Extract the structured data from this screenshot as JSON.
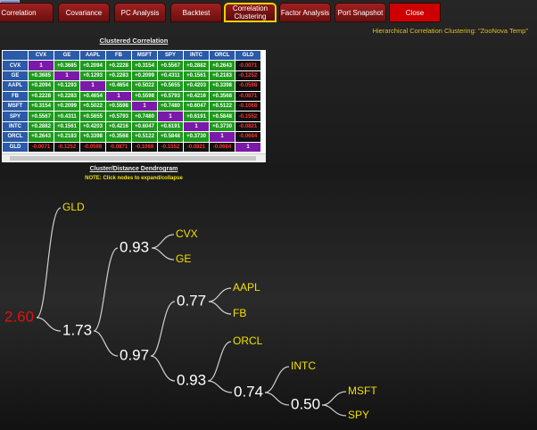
{
  "tabs": [
    "Correlation",
    "Covariance",
    "PC Analysis",
    "Backtest",
    "Correlation Clustering",
    "Factor Analysis",
    "Port Snapshot",
    "Close"
  ],
  "header": {
    "title": "Hierarchical Correlation Clustering: \"ZooNova Temp\""
  },
  "table": {
    "title": "Clustered Correlation",
    "columns": [
      "CVX",
      "GE",
      "AAPL",
      "FB",
      "MSFT",
      "SPY",
      "INTC",
      "ORCL",
      "GLD"
    ],
    "rows": [
      {
        "label": "CVX",
        "cells": [
          "1",
          "+0.3685",
          "+0.2094",
          "+0.2228",
          "+0.3154",
          "+0.5567",
          "+0.2882",
          "+0.2643",
          "-0.0071"
        ]
      },
      {
        "label": "GE",
        "cells": [
          "+0.3685",
          "1",
          "+0.1293",
          "+0.2283",
          "+0.2099",
          "+0.4311",
          "+0.1561",
          "+0.2183",
          "-0.1252"
        ]
      },
      {
        "label": "AAPL",
        "cells": [
          "+0.2094",
          "+0.1293",
          "1",
          "+0.4654",
          "+0.5022",
          "+0.5655",
          "+0.4203",
          "+0.3398",
          "-0.0598"
        ]
      },
      {
        "label": "FB",
        "cells": [
          "+0.2228",
          "+0.2283",
          "+0.4654",
          "1",
          "+0.5598",
          "+0.5793",
          "+0.4216",
          "+0.3568",
          "-0.0871"
        ]
      },
      {
        "label": "MSFT",
        "cells": [
          "+0.3154",
          "+0.2099",
          "+0.5022",
          "+0.5598",
          "1",
          "+0.7480",
          "+0.6047",
          "+0.5122",
          "-0.1068"
        ]
      },
      {
        "label": "SPY",
        "cells": [
          "+0.5567",
          "+0.4311",
          "+0.5655",
          "+0.5793",
          "+0.7480",
          "1",
          "+0.6191",
          "+0.5848",
          "-0.1552"
        ]
      },
      {
        "label": "INTC",
        "cells": [
          "+0.2882",
          "+0.1561",
          "+0.4203",
          "+0.4216",
          "+0.6047",
          "+0.6191",
          "1",
          "+0.3730",
          "-0.0821"
        ]
      },
      {
        "label": "ORCL",
        "cells": [
          "+0.2643",
          "+0.2183",
          "+0.3398",
          "+0.3568",
          "+0.5122",
          "+0.5848",
          "+0.3730",
          "1",
          "-0.0684"
        ]
      },
      {
        "label": "GLD",
        "cells": [
          "-0.0071",
          "-0.1252",
          "-0.0598",
          "-0.0871",
          "-0.1068",
          "-0.1552",
          "-0.0821",
          "-0.0684",
          "1"
        ]
      }
    ]
  },
  "dendrogram": {
    "title": "Cluster/Distance Dendrogram",
    "note": "NOTE: Click nodes to expand/collapse",
    "tree": {
      "label": "2.60",
      "children": [
        {
          "label": "GLD"
        },
        {
          "label": "1.73",
          "children": [
            {
              "label": "0.93",
              "children": [
                {
                  "label": "CVX"
                },
                {
                  "label": "GE"
                }
              ]
            },
            {
              "label": "0.97",
              "children": [
                {
                  "label": "0.77",
                  "children": [
                    {
                      "label": "AAPL"
                    },
                    {
                      "label": "FB"
                    }
                  ]
                },
                {
                  "label": "0.93",
                  "children": [
                    {
                      "label": "ORCL"
                    },
                    {
                      "label": "0.74",
                      "children": [
                        {
                          "label": "INTC"
                        },
                        {
                          "label": "0.50",
                          "children": [
                            {
                              "label": "MSFT"
                            },
                            {
                              "label": "SPY"
                            }
                          ]
                        }
                      ]
                    }
                  ]
                }
              ]
            }
          ]
        }
      ]
    }
  }
}
